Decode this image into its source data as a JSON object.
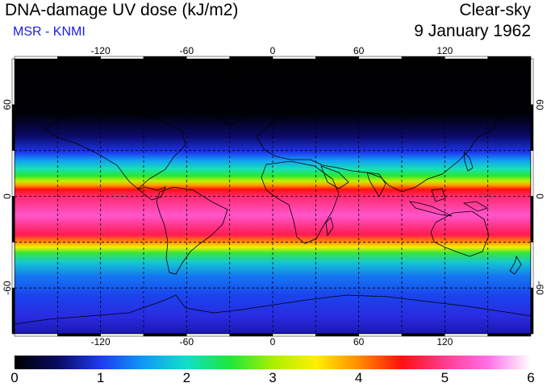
{
  "header": {
    "title": "DNA-damage UV dose (kJ/m2)",
    "subtitle": "MSR - KNMI",
    "sky_condition": "Clear-sky",
    "date": "9 January 1962"
  },
  "map": {
    "projection": "equirectangular",
    "lon_range": [
      -180,
      180
    ],
    "lat_range": [
      -90,
      90
    ],
    "lon_ticks": [
      "-120",
      "-60",
      "0",
      "60",
      "120"
    ],
    "lat_ticks": [
      "60",
      "0",
      "-60"
    ],
    "gridlines": "dashed every 30 degrees"
  },
  "colorbar": {
    "min": 0,
    "max": 6,
    "tick_labels": [
      "0",
      "1",
      "2",
      "3",
      "4",
      "5",
      "6"
    ],
    "colors": [
      "#000000",
      "#0a0a60",
      "#1f3bf0",
      "#0f9af5",
      "#10e0c8",
      "#1ee63c",
      "#a8f000",
      "#fff000",
      "#ff8c00",
      "#ff1010",
      "#ff3c90",
      "#ff70e6",
      "#ffffff"
    ]
  }
}
